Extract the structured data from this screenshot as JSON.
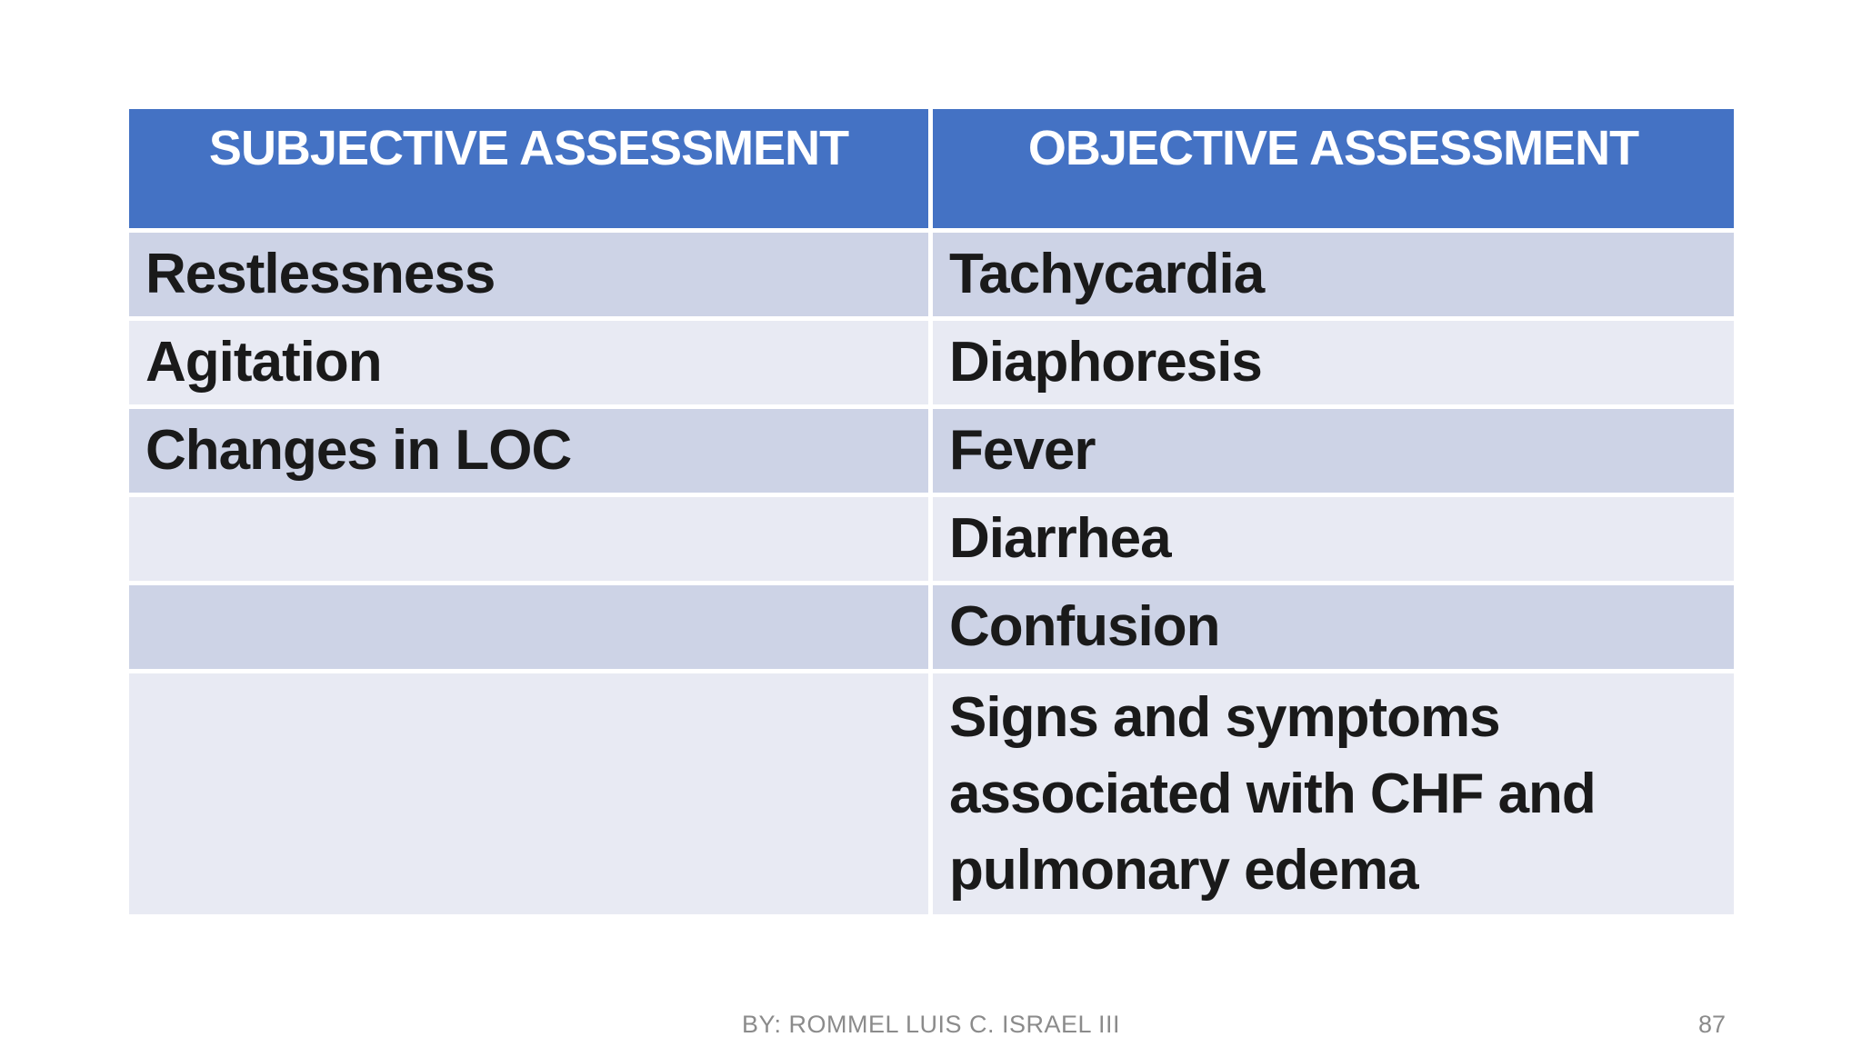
{
  "slide": {
    "background": "#FFFFFF"
  },
  "table": {
    "columns": [
      {
        "header": "SUBJECTIVE ASSESSMENT"
      },
      {
        "header": "OBJECTIVE ASSESSMENT"
      }
    ],
    "rows": [
      {
        "subjective": "Restlessness",
        "objective": "Tachycardia"
      },
      {
        "subjective": "Agitation",
        "objective": "Diaphoresis"
      },
      {
        "subjective": "Changes in LOC",
        "objective": "Fever"
      },
      {
        "subjective": "",
        "objective": "Diarrhea"
      },
      {
        "subjective": "",
        "objective": "Confusion"
      },
      {
        "subjective": "",
        "objective": "Signs and symptoms associated with CHF and pulmonary edema"
      }
    ],
    "colors": {
      "header_background": "#4472C4",
      "header_text": "#FFFFFF",
      "row_band_dark": "#CDD3E6",
      "row_band_light": "#E8EAF3",
      "body_text": "#1A1A1A",
      "divider": "#FFFFFF"
    }
  },
  "footer": {
    "author": "BY: ROMMEL LUIS C. ISRAEL III",
    "page_number": "87"
  }
}
